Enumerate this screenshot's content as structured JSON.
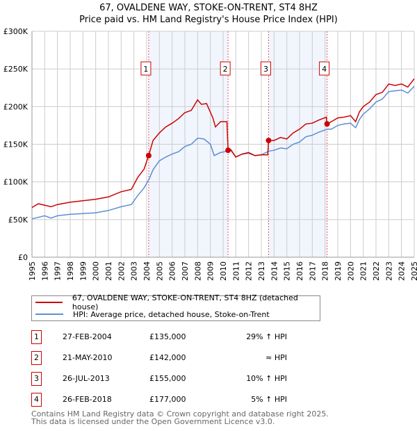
{
  "title": "67, OVALDENE WAY, STOKE-ON-TRENT, ST4 8HZ",
  "subtitle": "Price paid vs. HM Land Registry's House Price Index (HPI)",
  "chart_data": {
    "type": "line",
    "title": "67, OVALDENE WAY, STOKE-ON-TRENT, ST4 8HZ",
    "subtitle": "Price paid vs. HM Land Registry's House Price Index (HPI)",
    "xlim": [
      1995,
      2025
    ],
    "ylim": [
      0,
      300000
    ],
    "grid": true,
    "x_ticks": [
      "1995",
      "1996",
      "1997",
      "1998",
      "1999",
      "2000",
      "2001",
      "2002",
      "2003",
      "2004",
      "2005",
      "2006",
      "2007",
      "2008",
      "2009",
      "2010",
      "2011",
      "2012",
      "2013",
      "2014",
      "2015",
      "2016",
      "2017",
      "2018",
      "2019",
      "2020",
      "2021",
      "2022",
      "2023",
      "2024",
      "2025"
    ],
    "y_ticks": [
      {
        "value": 0,
        "label": "£0"
      },
      {
        "value": 50000,
        "label": "£50K"
      },
      {
        "value": 100000,
        "label": "£100K"
      },
      {
        "value": 150000,
        "label": "£150K"
      },
      {
        "value": 200000,
        "label": "£200K"
      },
      {
        "value": 250000,
        "label": "£250K"
      },
      {
        "value": 300000,
        "label": "£300K"
      }
    ],
    "shaded_ranges": [
      [
        2004.16,
        2010.39
      ],
      [
        2013.57,
        2018.16
      ]
    ],
    "series": [
      {
        "name": "67, OVALDENE WAY, STOKE-ON-TRENT, ST4 8HZ (detached house)",
        "color": "#cc0000",
        "x": [
          1995,
          1995.5,
          1996.5,
          1997,
          1998,
          1999,
          2000,
          2001,
          2002,
          2002.8,
          2003.3,
          2003.8,
          2004.16,
          2004.5,
          2005,
          2005.5,
          2006,
          2006.5,
          2007,
          2007.5,
          2008,
          2008.3,
          2008.7,
          2009.2,
          2009.4,
          2009.8,
          2010.3,
          2010.39,
          2010.6,
          2011,
          2011.5,
          2012,
          2012.5,
          2013,
          2013.5,
          2013.57,
          2014,
          2014.5,
          2015,
          2015.5,
          2016,
          2016.5,
          2017,
          2017.5,
          2018.1,
          2018.16,
          2018.5,
          2019,
          2019.5,
          2020,
          2020.4,
          2020.7,
          2021,
          2021.5,
          2022,
          2022.5,
          2023,
          2023.5,
          2024,
          2024.5,
          2025
        ],
        "y": [
          66000,
          71000,
          67000,
          70000,
          73000,
          75000,
          77000,
          80000,
          87000,
          90000,
          106000,
          117000,
          135000,
          155000,
          165000,
          173000,
          178000,
          184000,
          192000,
          195000,
          209000,
          203000,
          204000,
          185000,
          173000,
          180000,
          180000,
          142000,
          143000,
          133000,
          137000,
          139000,
          135000,
          136000,
          136000,
          155000,
          155000,
          159000,
          157000,
          165000,
          170000,
          177000,
          178000,
          182000,
          186000,
          177000,
          180000,
          185000,
          186000,
          188000,
          180000,
          193000,
          200000,
          206000,
          216000,
          219000,
          230000,
          228000,
          230000,
          226000,
          237000
        ]
      },
      {
        "name": "HPI: Average price, detached house, Stoke-on-Trent",
        "color": "#5b8fd4",
        "x": [
          1995,
          1996,
          1996.5,
          1997,
          1998,
          1999,
          2000,
          2001,
          2002,
          2002.8,
          2003.3,
          2003.8,
          2004.2,
          2004.5,
          2005,
          2005.5,
          2006,
          2006.5,
          2007,
          2007.5,
          2008,
          2008.5,
          2009,
          2009.3,
          2009.8,
          2010.4,
          2010.6,
          2011,
          2011.5,
          2012,
          2012.5,
          2013,
          2013.6,
          2014,
          2014.5,
          2015,
          2015.5,
          2016,
          2016.5,
          2017,
          2017.5,
          2018.2,
          2018.5,
          2019,
          2019.5,
          2020,
          2020.4,
          2020.7,
          2021,
          2021.5,
          2022,
          2022.5,
          2023,
          2023.5,
          2024,
          2024.5,
          2025
        ],
        "y": [
          51000,
          55000,
          52000,
          55000,
          57000,
          58000,
          59000,
          62000,
          67000,
          70000,
          82000,
          92000,
          104000,
          116000,
          128000,
          133000,
          137000,
          140000,
          147000,
          150000,
          158000,
          157000,
          150000,
          135000,
          139000,
          141000,
          142000,
          133000,
          137000,
          138000,
          135000,
          136000,
          141000,
          142000,
          145000,
          144000,
          150000,
          153000,
          160000,
          162000,
          166000,
          170000,
          170000,
          175000,
          177000,
          178000,
          172000,
          183000,
          190000,
          197000,
          206000,
          210000,
          220000,
          221000,
          222000,
          218000,
          227000
        ]
      }
    ],
    "sales": [
      {
        "label": "1",
        "x": 2004.16,
        "y": 135000
      },
      {
        "label": "2",
        "x": 2010.39,
        "y": 142000
      },
      {
        "label": "3",
        "x": 2013.57,
        "y": 155000
      },
      {
        "label": "4",
        "x": 2018.16,
        "y": 177000
      }
    ],
    "legend_placement": "below"
  },
  "legend": {
    "property": "67, OVALDENE WAY, STOKE-ON-TRENT, ST4 8HZ (detached house)",
    "hpi": "HPI: Average price, detached house, Stoke-on-Trent"
  },
  "transactions": [
    {
      "num": "1",
      "date": "27-FEB-2004",
      "price": "£135,000",
      "hpi": "29% ↑ HPI"
    },
    {
      "num": "2",
      "date": "21-MAY-2010",
      "price": "£142,000",
      "hpi": "≈ HPI"
    },
    {
      "num": "3",
      "date": "26-JUL-2013",
      "price": "£155,000",
      "hpi": "10% ↑ HPI"
    },
    {
      "num": "4",
      "date": "26-FEB-2018",
      "price": "£177,000",
      "hpi": "5% ↑ HPI"
    }
  ],
  "footer": {
    "line1": "Contains HM Land Registry data © Crown copyright and database right 2025.",
    "line2": "This data is licensed under the Open Government Licence v3.0."
  }
}
